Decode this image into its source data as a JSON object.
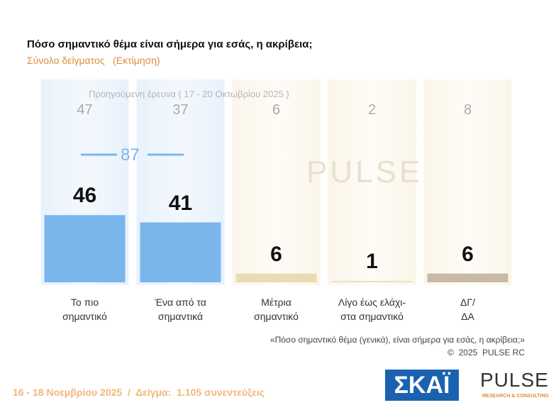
{
  "chart_data": {
    "type": "bar",
    "title": "Πόσο σημαντικό θέμα είναι σήμερα για εσάς, η ακρίβεια;",
    "subtitle": "Σύνολο δείγματος   (Εκτίμηση)",
    "categories": [
      "Το πιο\nσημαντικό",
      "Ένα από τα\nσημαντικά",
      "Μέτρια\nσημαντικό",
      "Λίγο έως ελάχι-\nστα σημαντικό",
      "ΔΓ/\nΔΑ"
    ],
    "values": [
      46,
      41,
      6,
      1,
      6
    ],
    "colors": [
      "#7ab6ec",
      "#7ab6ec",
      "#e9dcb4",
      "#eadfc6",
      "#c8baa6"
    ],
    "ylim": [
      0,
      50
    ],
    "previous": {
      "label": "Προηγούμενη έρευνα ( 17 - 20 Οκτωβρίου 2025 )",
      "values": [
        47,
        37,
        6,
        2,
        8
      ]
    },
    "combined": 87,
    "footnote": "«Πόσο σημαντικό θέμα (γενικά), είναι σήμερα για εσάς, η ακρίβεια;»",
    "copyright": "©  2025  PULSE RC",
    "footer": "16 - 18 Νοεμβρίου 2025  /  Δείγμα:  1.105 συνεντεύξεις",
    "logos": [
      "ΣΚΑΪ",
      "PULSE",
      "RESEARCH & CONSULTING"
    ]
  }
}
